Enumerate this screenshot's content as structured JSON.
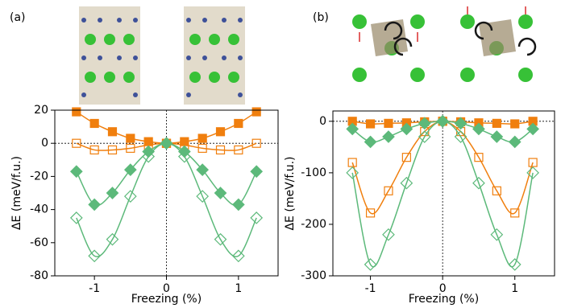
{
  "chart_data": [
    {
      "type": "line",
      "panel_label": "(a)",
      "xlabel": "Freezing (%)",
      "ylabel": "ΔE (meV/f.u.)",
      "xlim": [
        -1.55,
        1.55
      ],
      "xticks": [
        -1,
        0,
        1
      ],
      "ylim": [
        -80,
        20
      ],
      "yticks": [
        -80,
        -60,
        -40,
        -20,
        0,
        20
      ],
      "x": [
        -1.25,
        -1,
        -0.75,
        -0.5,
        -0.25,
        0,
        0.25,
        0.5,
        0.75,
        1,
        1.25
      ],
      "series": [
        {
          "color": "#f07f0e",
          "marker": "square",
          "filled": true,
          "values": [
            19,
            12,
            7,
            3,
            1,
            0,
            1,
            3,
            7,
            12,
            19
          ]
        },
        {
          "color": "#f07f0e",
          "marker": "square",
          "filled": false,
          "values": [
            0,
            -4,
            -4,
            -3,
            -1,
            0,
            -1,
            -3,
            -4,
            -4,
            0
          ]
        },
        {
          "color": "#5cb97a",
          "marker": "diamond",
          "filled": true,
          "values": [
            -17,
            -37,
            -30,
            -16,
            -5,
            0,
            -5,
            -16,
            -30,
            -37,
            -17
          ]
        },
        {
          "color": "#5cb97a",
          "marker": "diamond",
          "filled": false,
          "values": [
            -45,
            -68,
            -58,
            -32,
            -8,
            0,
            -8,
            -32,
            -58,
            -68,
            -45
          ]
        }
      ]
    },
    {
      "type": "line",
      "panel_label": "(b)",
      "xlabel": "Freezing (%)",
      "ylabel": "ΔE (meV/f.u.)",
      "xlim": [
        -1.52,
        1.55
      ],
      "xticks": [
        -1,
        0,
        1
      ],
      "ylim": [
        -300,
        20
      ],
      "yticks": [
        -300,
        -200,
        -100,
        0
      ],
      "x": [
        -1.25,
        -1,
        -0.75,
        -0.5,
        -0.25,
        0,
        0.25,
        0.5,
        0.75,
        1,
        1.25
      ],
      "series": [
        {
          "color": "#f07f0e",
          "marker": "square",
          "filled": true,
          "values": [
            0,
            -5,
            -4,
            -3,
            -1,
            0,
            -1,
            -3,
            -4,
            -5,
            0
          ]
        },
        {
          "color": "#f07f0e",
          "marker": "square",
          "filled": false,
          "values": [
            -80,
            -178,
            -135,
            -70,
            -20,
            0,
            -20,
            -70,
            -135,
            -178,
            -80
          ]
        },
        {
          "color": "#5cb97a",
          "marker": "diamond",
          "filled": true,
          "values": [
            -15,
            -40,
            -30,
            -15,
            -4,
            0,
            -4,
            -15,
            -30,
            -40,
            -15
          ]
        },
        {
          "color": "#5cb97a",
          "marker": "diamond",
          "filled": false,
          "values": [
            -100,
            -278,
            -220,
            -120,
            -30,
            0,
            -30,
            -120,
            -220,
            -278,
            -100
          ]
        }
      ]
    }
  ]
}
